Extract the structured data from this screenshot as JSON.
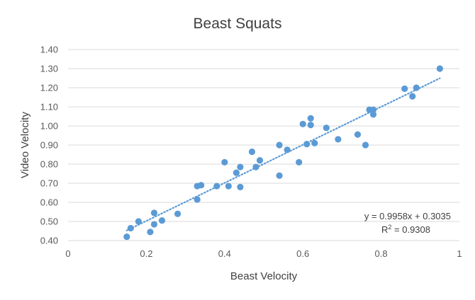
{
  "chart_data": {
    "type": "scatter",
    "title": "Beast Squats",
    "xlabel": "Beast Velocity",
    "ylabel": "Video Velocity",
    "xlim": [
      0,
      1
    ],
    "ylim": [
      0.4,
      1.4
    ],
    "x_ticks": [
      0,
      0.2,
      0.4,
      0.6,
      0.8,
      1
    ],
    "x_tick_labels": [
      "0",
      "0.2",
      "0.4",
      "0.6",
      "0.8",
      "1"
    ],
    "y_ticks": [
      0.4,
      0.5,
      0.6,
      0.7,
      0.8,
      0.9,
      1.0,
      1.1,
      1.2,
      1.3,
      1.4
    ],
    "y_tick_labels": [
      "0.40",
      "0.50",
      "0.60",
      "0.70",
      "0.80",
      "0.90",
      "1.00",
      "1.10",
      "1.20",
      "1.30",
      "1.40"
    ],
    "grid": "horizontal",
    "legend": "none",
    "series": [
      {
        "color": "#5B9BD5",
        "points": [
          [
            0.15,
            0.42
          ],
          [
            0.16,
            0.465
          ],
          [
            0.18,
            0.5
          ],
          [
            0.21,
            0.445
          ],
          [
            0.22,
            0.485
          ],
          [
            0.22,
            0.545
          ],
          [
            0.24,
            0.505
          ],
          [
            0.28,
            0.54
          ],
          [
            0.33,
            0.615
          ],
          [
            0.33,
            0.685
          ],
          [
            0.34,
            0.69
          ],
          [
            0.38,
            0.685
          ],
          [
            0.4,
            0.81
          ],
          [
            0.41,
            0.685
          ],
          [
            0.43,
            0.755
          ],
          [
            0.44,
            0.785
          ],
          [
            0.44,
            0.68
          ],
          [
            0.47,
            0.865
          ],
          [
            0.48,
            0.785
          ],
          [
            0.49,
            0.82
          ],
          [
            0.54,
            0.74
          ],
          [
            0.54,
            0.9
          ],
          [
            0.56,
            0.875
          ],
          [
            0.59,
            0.81
          ],
          [
            0.6,
            1.01
          ],
          [
            0.61,
            0.905
          ],
          [
            0.62,
            1.04
          ],
          [
            0.62,
            1.005
          ],
          [
            0.63,
            0.91
          ],
          [
            0.66,
            0.99
          ],
          [
            0.69,
            0.93
          ],
          [
            0.74,
            0.955
          ],
          [
            0.76,
            0.9
          ],
          [
            0.77,
            1.085
          ],
          [
            0.78,
            1.085
          ],
          [
            0.78,
            1.06
          ],
          [
            0.86,
            1.195
          ],
          [
            0.88,
            1.155
          ],
          [
            0.89,
            1.2
          ],
          [
            0.95,
            1.3
          ]
        ]
      }
    ],
    "trendline": {
      "type": "linear",
      "slope": 0.9958,
      "intercept": 0.3035,
      "x_range": [
        0.15,
        0.95
      ],
      "style": "dotted",
      "color": "#5B9BD5"
    },
    "annotations": {
      "equation": "y = 0.9958x + 0.3035",
      "r_squared_prefix": "R",
      "r_squared_sup": "2",
      "r_squared_value": " = 0.9308"
    }
  }
}
